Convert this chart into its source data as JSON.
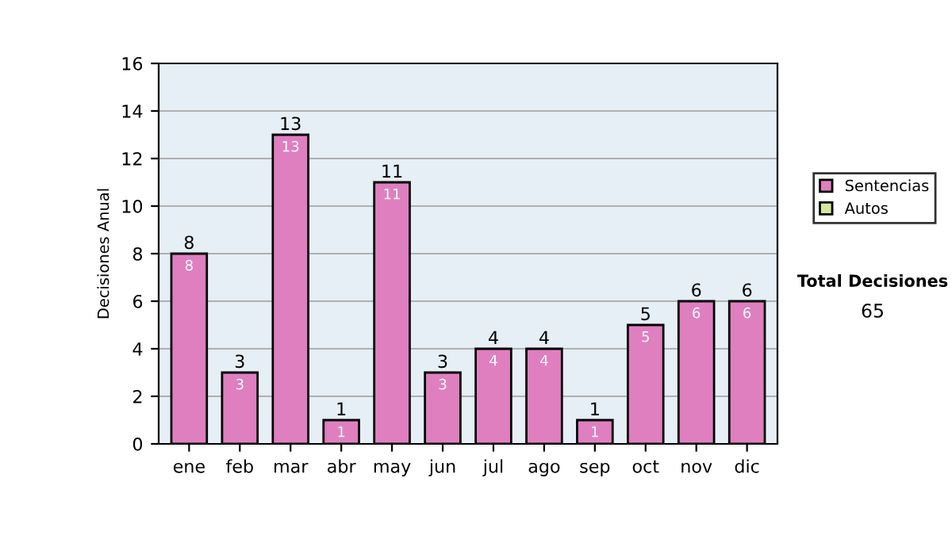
{
  "chart_data": {
    "type": "bar",
    "stacked": true,
    "ylabel": "Decisiones Anual",
    "categories": [
      "ene",
      "feb",
      "mar",
      "abr",
      "may",
      "jun",
      "jul",
      "ago",
      "sep",
      "oct",
      "nov",
      "dic"
    ],
    "series": [
      {
        "name": "Sentencias",
        "color": "#df7fc0",
        "values": [
          8,
          3,
          13,
          1,
          11,
          3,
          4,
          4,
          1,
          5,
          6,
          6
        ],
        "value_labels": [
          "8",
          "3",
          "13",
          "1",
          "11",
          "3",
          "4",
          "4",
          "1",
          "5",
          "6",
          "6"
        ]
      },
      {
        "name": "Autos",
        "color": "#d4e8a0",
        "values": [
          null,
          null,
          null,
          null,
          null,
          null,
          null,
          null,
          null,
          null,
          null,
          null
        ]
      }
    ],
    "totals": [
      "8",
      "3",
      "13",
      "1",
      "11",
      "3",
      "4",
      "4",
      "1",
      "5",
      "6",
      "6"
    ],
    "ylim": [
      0,
      16
    ],
    "yticks": [
      0,
      2,
      4,
      6,
      8,
      10,
      12,
      14,
      16
    ],
    "grid": "y",
    "legend": "right",
    "annotations": [
      "Total Decisiones",
      "65"
    ]
  }
}
